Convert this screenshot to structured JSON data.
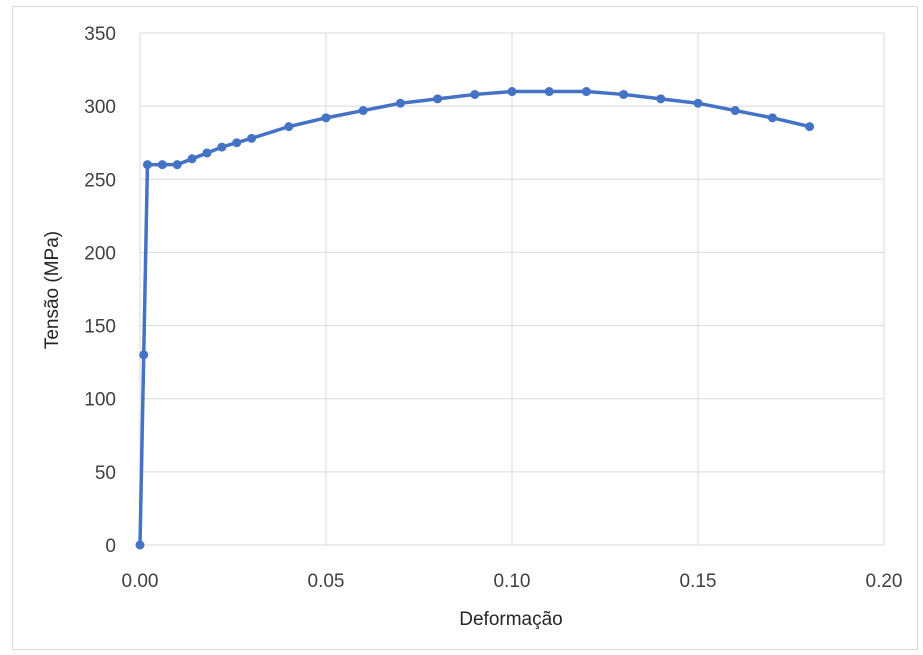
{
  "chart_data": {
    "type": "line",
    "title": "",
    "xlabel": "Deformação",
    "ylabel": "Tensão (MPa)",
    "xlim": [
      0,
      0.2
    ],
    "ylim": [
      0,
      350
    ],
    "x_ticks": [
      0,
      0.05,
      0.1,
      0.15,
      0.2
    ],
    "x_tick_labels": [
      "0.00",
      "0.05",
      "0.10",
      "0.15",
      "0.20"
    ],
    "y_ticks": [
      0,
      50,
      100,
      150,
      200,
      250,
      300,
      350
    ],
    "y_tick_labels": [
      "0",
      "50",
      "100",
      "150",
      "200",
      "250",
      "300",
      "350"
    ],
    "grid": true,
    "legend": "none",
    "series": [
      {
        "color": "#4472c4",
        "markers": true,
        "x": [
          0,
          0.001,
          0.002,
          0.006,
          0.01,
          0.014,
          0.018,
          0.022,
          0.026,
          0.03,
          0.04,
          0.05,
          0.06,
          0.07,
          0.08,
          0.09,
          0.1,
          0.11,
          0.12,
          0.13,
          0.14,
          0.15,
          0.16,
          0.17,
          0.18
        ],
        "y": [
          0,
          130,
          260,
          260,
          260,
          264,
          268,
          272,
          275,
          278,
          286,
          292,
          297,
          302,
          305,
          308,
          310,
          310,
          310,
          308,
          305,
          302,
          297,
          292,
          286
        ]
      }
    ]
  }
}
